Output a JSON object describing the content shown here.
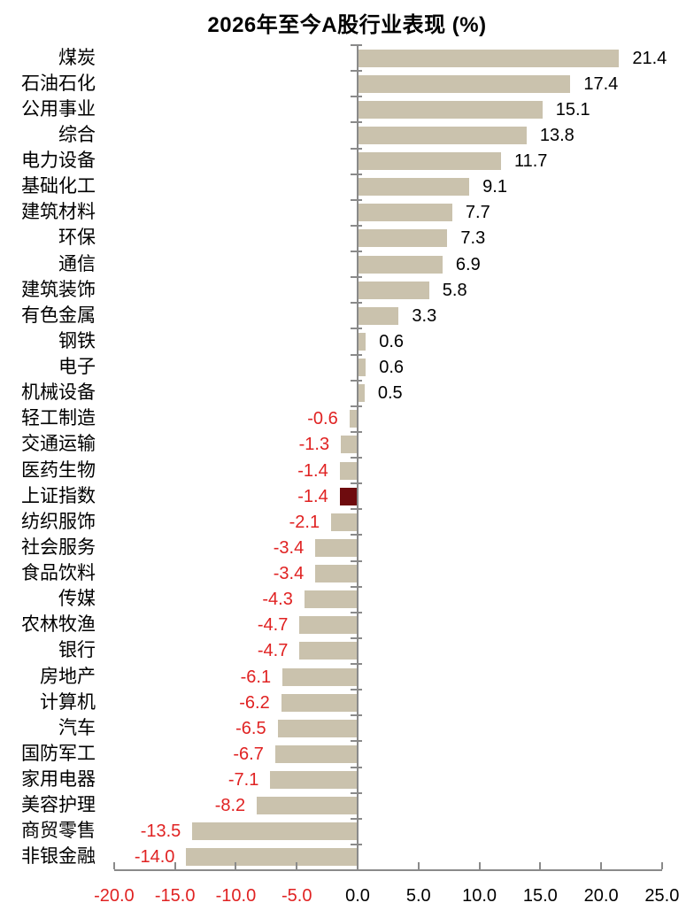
{
  "chart_data": {
    "type": "bar",
    "orientation": "horizontal",
    "title": "2026年至今A股行业表现 (%)",
    "categories": [
      "煤炭",
      "石油石化",
      "公用事业",
      "综合",
      "电力设备",
      "基础化工",
      "建筑材料",
      "环保",
      "通信",
      "建筑装饰",
      "有色金属",
      "钢铁",
      "电子",
      "机械设备",
      "轻工制造",
      "交通运输",
      "医药生物",
      "上证指数",
      "纺织服饰",
      "社会服务",
      "食品饮料",
      "传媒",
      "农林牧渔",
      "银行",
      "房地产",
      "计算机",
      "汽车",
      "国防军工",
      "家用电器",
      "美容护理",
      "商贸零售",
      "非银金融"
    ],
    "values": [
      21.4,
      17.4,
      15.1,
      13.8,
      11.7,
      9.1,
      7.7,
      7.3,
      6.9,
      5.8,
      3.3,
      0.6,
      0.6,
      0.5,
      -0.6,
      -1.3,
      -1.4,
      -1.4,
      -2.1,
      -3.4,
      -3.4,
      -4.3,
      -4.7,
      -4.7,
      -6.1,
      -6.2,
      -6.5,
      -6.7,
      -7.1,
      -8.2,
      -13.5,
      -14.0
    ],
    "value_label_decimals": 1,
    "highlight_category": "上证指数",
    "xlim": [
      -20.0,
      25.0
    ],
    "xticks": [
      -20,
      -15,
      -10,
      -5,
      0,
      5,
      10,
      15,
      20,
      25
    ],
    "xtick_labels": [
      "-20.0",
      "-15.0",
      "-10.0",
      "-5.0",
      "0.0",
      "5.0",
      "10.0",
      "15.0",
      "20.0",
      "25.0"
    ],
    "grid": false,
    "legend": false,
    "colors": {
      "bar": "#cac2ad",
      "highlight_bar": "#6e0b0e",
      "positive_text": "#000000",
      "negative_text": "#e02222",
      "axis": "#8a8a8a",
      "category_text": "#000000",
      "title_text": "#000000",
      "background": "#ffffff"
    }
  }
}
